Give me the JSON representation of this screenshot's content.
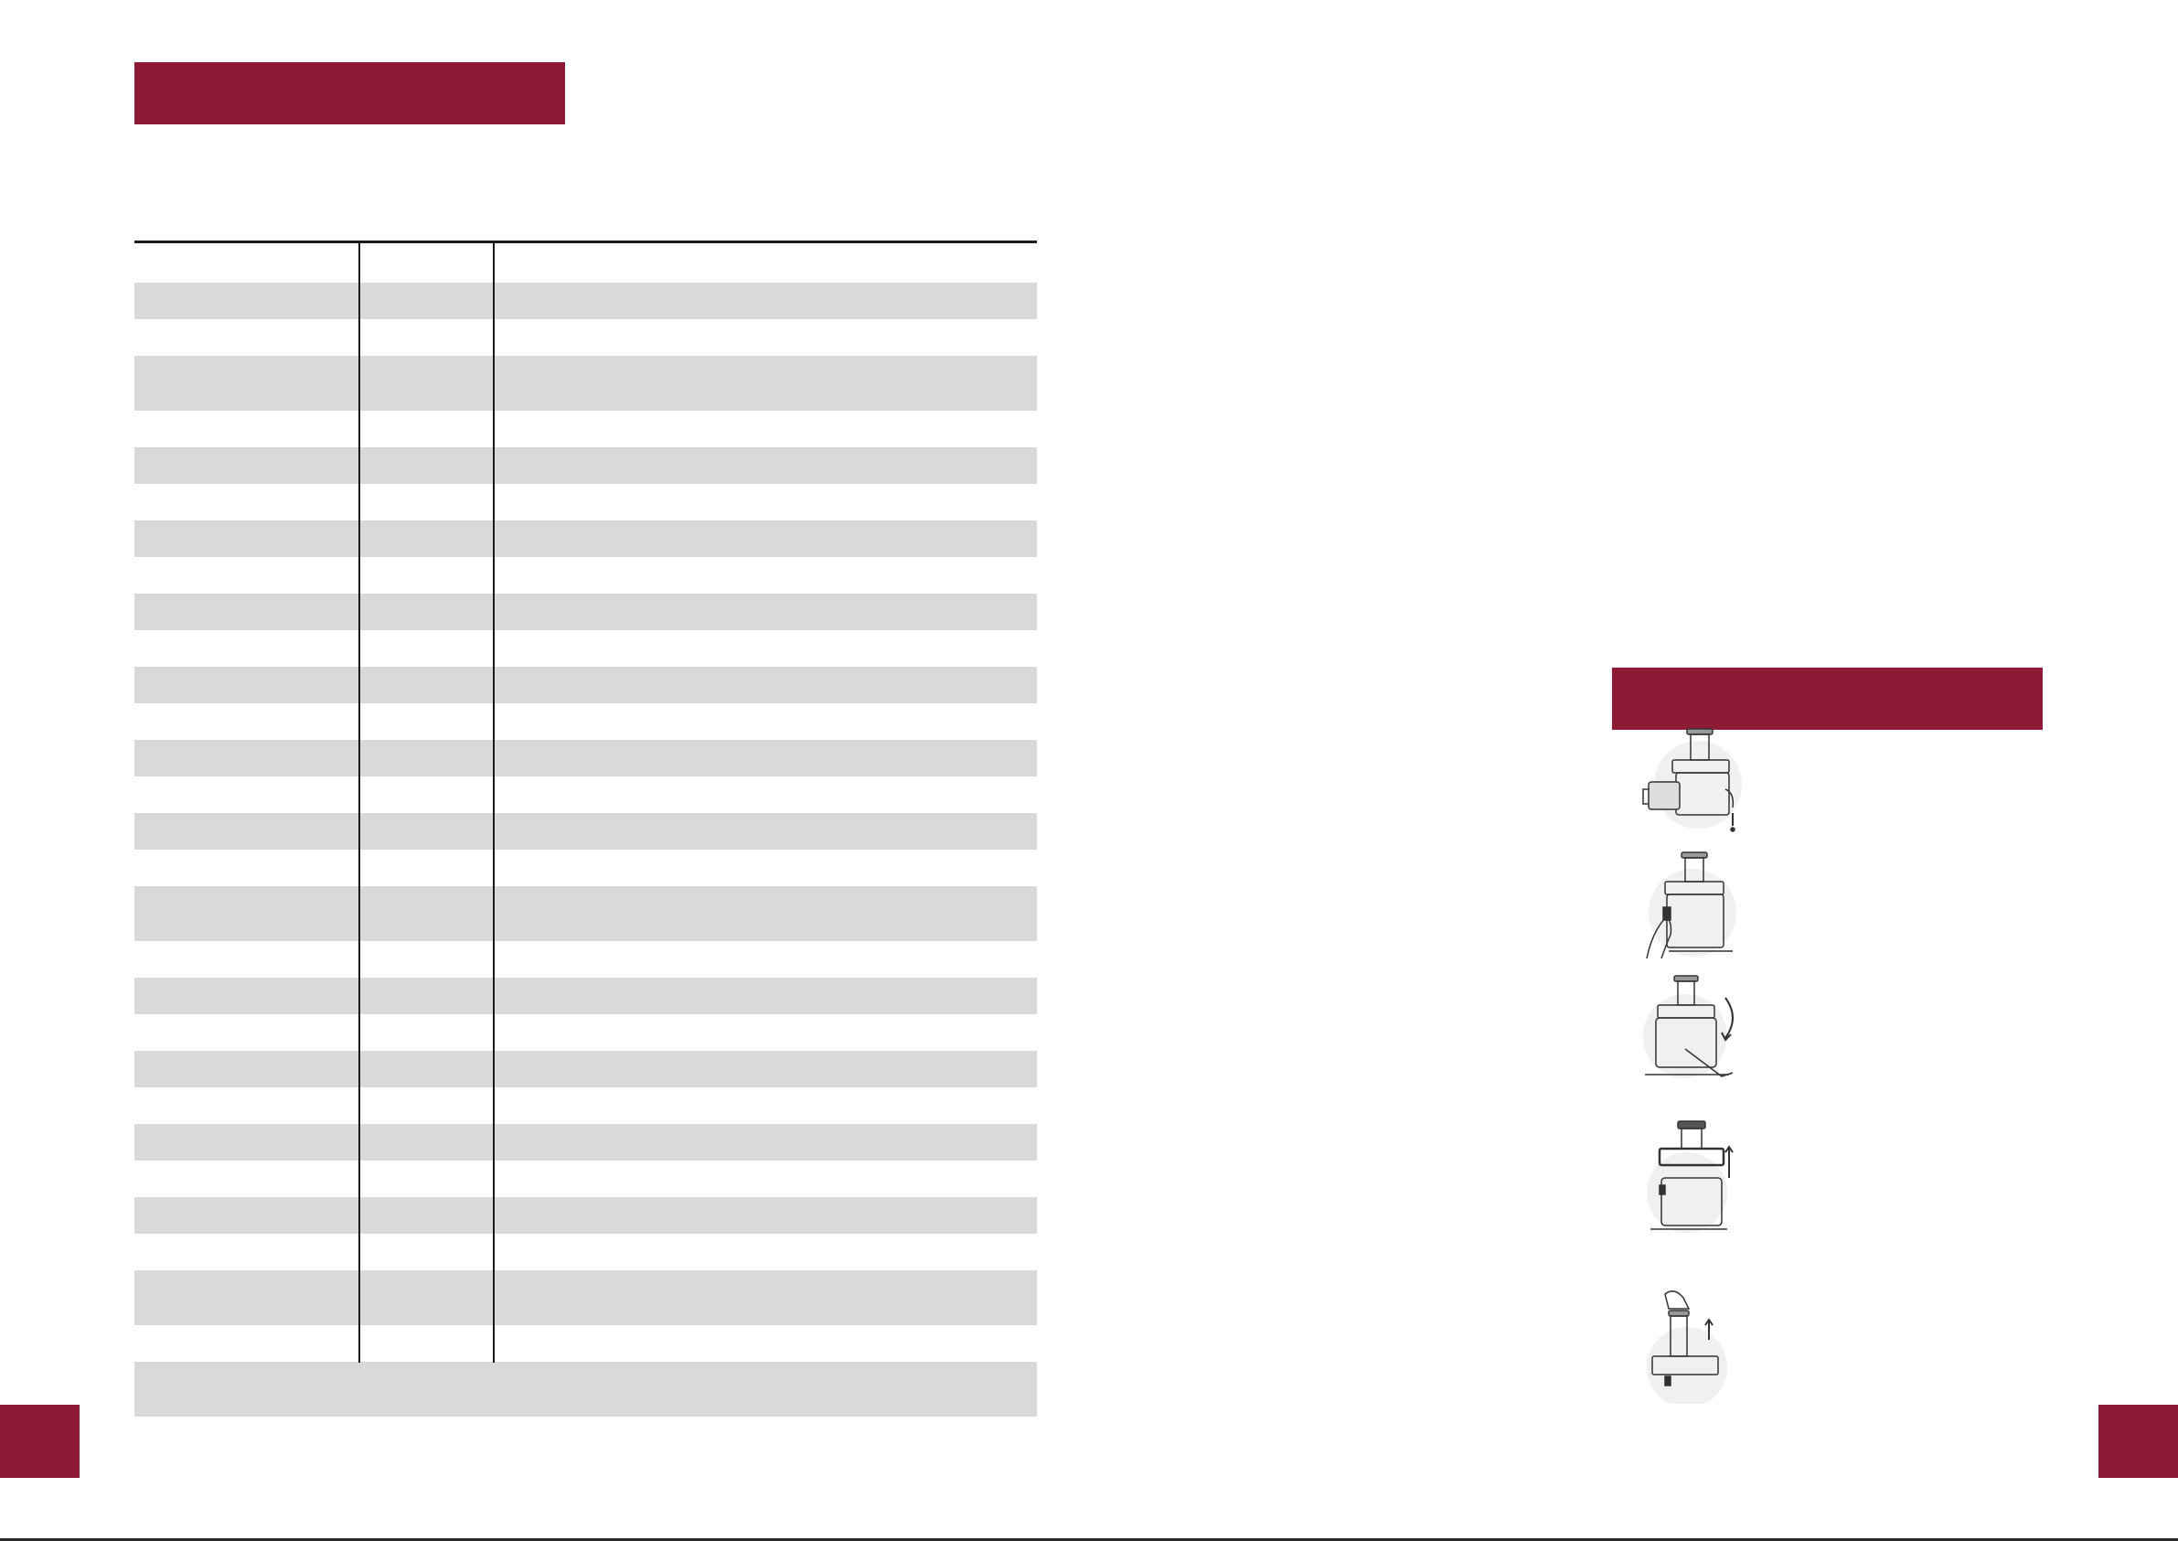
{
  "left_page": {
    "banner_title": "",
    "page_tab_label": ""
  },
  "right_page": {
    "banner_title": "",
    "page_tab_label": ""
  },
  "table": {
    "rows": [
      {
        "shaded": false,
        "cells": [
          "",
          "",
          ""
        ]
      },
      {
        "shaded": true,
        "cells": [
          "",
          "",
          ""
        ]
      },
      {
        "shaded": false,
        "cells": [
          "",
          "",
          ""
        ]
      },
      {
        "shaded": true,
        "cells": [
          "",
          "",
          ""
        ]
      },
      {
        "shaded": false,
        "cells": [
          "",
          "",
          ""
        ]
      },
      {
        "shaded": true,
        "cells": [
          "",
          "",
          ""
        ]
      },
      {
        "shaded": false,
        "cells": [
          "",
          "",
          ""
        ]
      },
      {
        "shaded": true,
        "cells": [
          "",
          "",
          ""
        ]
      },
      {
        "shaded": false,
        "cells": [
          "",
          "",
          ""
        ]
      },
      {
        "shaded": true,
        "cells": [
          "",
          "",
          ""
        ]
      },
      {
        "shaded": false,
        "cells": [
          "",
          "",
          ""
        ]
      },
      {
        "shaded": true,
        "cells": [
          "",
          "",
          ""
        ]
      },
      {
        "shaded": false,
        "cells": [
          "",
          "",
          ""
        ]
      },
      {
        "shaded": true,
        "cells": [
          "",
          "",
          ""
        ]
      },
      {
        "shaded": false,
        "cells": [
          "",
          "",
          ""
        ]
      },
      {
        "shaded": true,
        "cells": [
          "",
          "",
          ""
        ]
      },
      {
        "shaded": false,
        "cells": [
          "",
          "",
          ""
        ]
      },
      {
        "shaded": true,
        "cells": [
          "",
          "",
          ""
        ]
      },
      {
        "shaded": false,
        "cells": [
          "",
          "",
          ""
        ]
      },
      {
        "shaded": true,
        "cells": [
          "",
          "",
          ""
        ]
      },
      {
        "shaded": false,
        "cells": [
          "",
          "",
          ""
        ]
      },
      {
        "shaded": true,
        "cells": [
          "",
          "",
          ""
        ]
      },
      {
        "shaded": false,
        "cells": [
          "",
          "",
          ""
        ]
      },
      {
        "shaded": true,
        "cells": [
          "",
          "",
          ""
        ]
      },
      {
        "shaded": false,
        "cells": [
          "",
          "",
          ""
        ]
      },
      {
        "shaded": true,
        "cells": [
          "",
          "",
          ""
        ]
      },
      {
        "shaded": false,
        "cells": [
          "",
          "",
          ""
        ]
      },
      {
        "shaded": true,
        "cells": [
          "",
          "",
          ""
        ]
      },
      {
        "shaded": false,
        "cells": [
          "",
          "",
          ""
        ]
      },
      {
        "shaded": true,
        "cells": [
          "",
          "",
          ""
        ]
      }
    ]
  },
  "illustrations": [
    {
      "icon": "juicer-remove-jug-and-unplug-icon"
    },
    {
      "icon": "juicer-release-clamp-icon"
    },
    {
      "icon": "juicer-tilt-pulp-container-icon"
    },
    {
      "icon": "juicer-lift-cover-icon"
    },
    {
      "icon": "juicer-lift-pusher-icon"
    }
  ],
  "colors": {
    "accent": "#8e1a35",
    "row_shade": "#d9d9d9",
    "rule": "#1a1a1a"
  }
}
